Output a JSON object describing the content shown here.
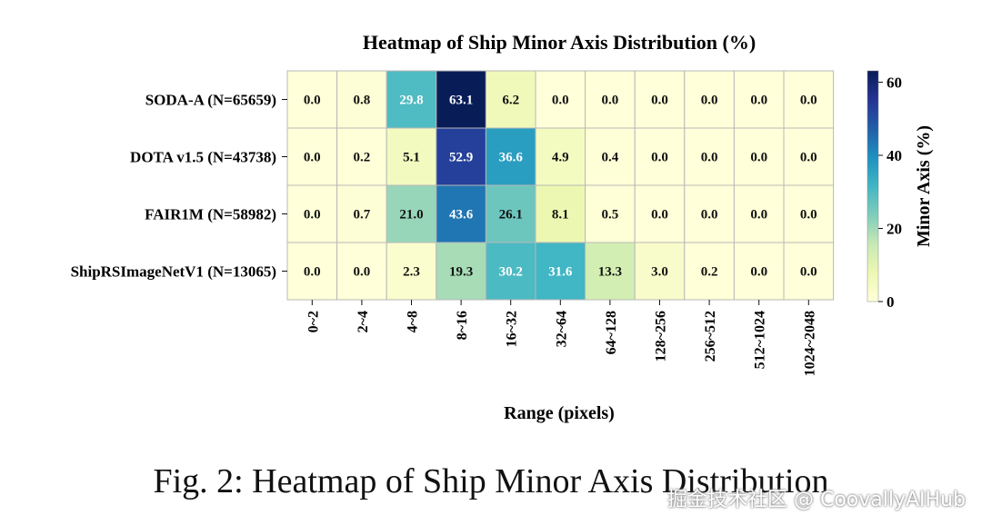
{
  "chart_data": {
    "type": "heatmap",
    "title": "Heatmap of Ship Minor Axis Distribution (%)",
    "xlabel": "Range (pixels)",
    "colorbar_label": "Minor Axis (%)",
    "colorbar_ticks": [
      0,
      20,
      40,
      60
    ],
    "colorbar_range": [
      0,
      63.1
    ],
    "colormap": "YlGnBu",
    "x_categories": [
      "0~2",
      "2~4",
      "4~8",
      "8~16",
      "16~32",
      "32~64",
      "64~128",
      "128~256",
      "256~512",
      "512~1024",
      "1024~2048"
    ],
    "y_categories": [
      "SODA-A (N=65659)",
      "DOTA v1.5 (N=43738)",
      "FAIR1M (N=58982)",
      "ShipRSImageNetV1 (N=13065)"
    ],
    "values": [
      [
        0.0,
        0.8,
        29.8,
        63.1,
        6.2,
        0.0,
        0.0,
        0.0,
        0.0,
        0.0,
        0.0
      ],
      [
        0.0,
        0.2,
        5.1,
        52.9,
        36.6,
        4.9,
        0.4,
        0.0,
        0.0,
        0.0,
        0.0
      ],
      [
        0.0,
        0.7,
        21.0,
        43.6,
        26.1,
        8.1,
        0.5,
        0.0,
        0.0,
        0.0,
        0.0
      ],
      [
        0.0,
        0.0,
        2.3,
        19.3,
        30.2,
        31.6,
        13.3,
        3.0,
        0.2,
        0.0,
        0.0
      ]
    ]
  },
  "caption": "Fig. 2: Heatmap of Ship Minor Axis Distribution",
  "watermark": "掘金技术社区 @ CoovallyAIHub"
}
